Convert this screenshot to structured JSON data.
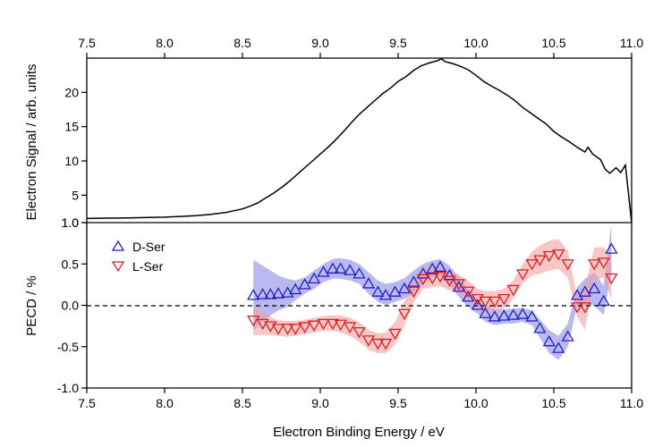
{
  "chart_data": [
    {
      "type": "line",
      "panel": "top",
      "title": "",
      "xlabel": "",
      "ylabel": "Electron Signal / arb. units",
      "xlim": [
        7.5,
        11.0
      ],
      "ylim": [
        1.0,
        25.0
      ],
      "xticks": [
        "7.5",
        "8.0",
        "8.5",
        "9.0",
        "9.5",
        "10.0",
        "10.5",
        "11.0"
      ],
      "yticks": [
        "1.0",
        "5",
        "10",
        "15",
        "20"
      ],
      "xtick_values": [
        7.5,
        8.0,
        8.5,
        9.0,
        9.5,
        10.0,
        10.5,
        11.0
      ],
      "ytick_values": [
        1.0,
        5,
        10,
        15,
        20
      ],
      "series": [
        {
          "color": "#000000",
          "x": [
            7.5,
            7.8,
            8.0,
            8.1,
            8.2,
            8.3,
            8.4,
            8.5,
            8.55,
            8.6,
            8.65,
            8.7,
            8.75,
            8.8,
            8.85,
            8.9,
            8.95,
            9.0,
            9.05,
            9.1,
            9.15,
            9.2,
            9.25,
            9.3,
            9.35,
            9.4,
            9.45,
            9.5,
            9.55,
            9.6,
            9.65,
            9.7,
            9.75,
            9.78,
            9.8,
            9.85,
            9.9,
            9.95,
            10.0,
            10.05,
            10.1,
            10.15,
            10.2,
            10.25,
            10.3,
            10.35,
            10.4,
            10.45,
            10.5,
            10.55,
            10.6,
            10.65,
            10.7,
            10.72,
            10.75,
            10.8,
            10.83,
            10.86,
            10.9,
            10.93,
            10.96,
            11.0
          ],
          "y": [
            1.6,
            1.7,
            1.8,
            1.9,
            2.0,
            2.2,
            2.5,
            3.0,
            3.4,
            3.9,
            4.6,
            5.3,
            6.1,
            7.0,
            8.0,
            9.0,
            10.0,
            11.0,
            12.0,
            13.1,
            14.3,
            15.6,
            16.8,
            17.8,
            18.8,
            19.8,
            20.6,
            21.6,
            22.3,
            23.2,
            23.9,
            24.3,
            24.6,
            24.9,
            24.5,
            24.2,
            23.8,
            23.3,
            22.5,
            21.6,
            20.9,
            20.3,
            19.6,
            18.8,
            17.8,
            17.0,
            16.2,
            15.4,
            14.3,
            13.5,
            12.8,
            12.0,
            11.3,
            12.0,
            11.0,
            10.2,
            8.8,
            8.2,
            9.0,
            8.3,
            9.4,
            1.0
          ]
        }
      ]
    },
    {
      "type": "scatter",
      "panel": "bottom",
      "title": "",
      "xlabel": "Electron Binding Energy / eV",
      "ylabel": "PECD / %",
      "xlim": [
        7.5,
        11.0
      ],
      "ylim": [
        -1.0,
        1.0
      ],
      "xticks": [
        "7.5",
        "8.0",
        "8.5",
        "9.0",
        "9.5",
        "10.0",
        "10.5",
        "11.0"
      ],
      "yticks": [
        "-1.0",
        "-0.5",
        "0.0",
        "0.5",
        "1.0"
      ],
      "xtick_values": [
        7.5,
        8.0,
        8.5,
        9.0,
        9.5,
        10.0,
        10.5,
        11.0
      ],
      "ytick_values": [
        -1.0,
        -0.5,
        0.0,
        0.5,
        1.0
      ],
      "zero_line": "dashed",
      "legend_position": "top-left",
      "series": [
        {
          "name": "D-Ser",
          "color": "#1f1fcc",
          "band_color": "#8a8ae6",
          "marker": "triangle-up",
          "x": [
            8.57,
            8.63,
            8.68,
            8.73,
            8.79,
            8.84,
            8.9,
            8.96,
            9.02,
            9.08,
            9.13,
            9.19,
            9.25,
            9.31,
            9.37,
            9.42,
            9.48,
            9.54,
            9.6,
            9.66,
            9.72,
            9.77,
            9.83,
            9.89,
            9.95,
            10.01,
            10.06,
            10.12,
            10.18,
            10.24,
            10.3,
            10.36,
            10.41,
            10.47,
            10.53,
            10.59,
            10.65,
            10.7,
            10.76,
            10.82,
            10.87
          ],
          "y": [
            0.12,
            0.13,
            0.13,
            0.14,
            0.15,
            0.19,
            0.25,
            0.32,
            0.4,
            0.44,
            0.44,
            0.42,
            0.38,
            0.26,
            0.16,
            0.12,
            0.16,
            0.2,
            0.28,
            0.38,
            0.44,
            0.46,
            0.36,
            0.22,
            0.1,
            0.0,
            -0.1,
            -0.14,
            -0.13,
            -0.12,
            -0.11,
            -0.14,
            -0.28,
            -0.44,
            -0.52,
            -0.38,
            0.12,
            0.16,
            0.2,
            0.05,
            0.68
          ],
          "band_upper": [
            0.55,
            0.48,
            0.42,
            0.36,
            0.32,
            0.3,
            0.34,
            0.42,
            0.5,
            0.56,
            0.57,
            0.55,
            0.5,
            0.4,
            0.3,
            0.26,
            0.28,
            0.33,
            0.42,
            0.5,
            0.54,
            0.56,
            0.48,
            0.34,
            0.2,
            0.08,
            0.0,
            -0.05,
            -0.05,
            -0.04,
            -0.03,
            -0.06,
            -0.17,
            -0.3,
            -0.37,
            -0.22,
            0.22,
            0.32,
            0.4,
            0.24,
            0.98
          ],
          "band_lower": [
            -0.3,
            -0.2,
            -0.12,
            -0.06,
            -0.02,
            0.06,
            0.14,
            0.2,
            0.28,
            0.32,
            0.32,
            0.3,
            0.26,
            0.14,
            0.04,
            0.0,
            0.04,
            0.08,
            0.15,
            0.26,
            0.34,
            0.36,
            0.25,
            0.1,
            -0.02,
            -0.1,
            -0.2,
            -0.24,
            -0.22,
            -0.22,
            -0.2,
            -0.24,
            -0.39,
            -0.58,
            -0.66,
            -0.5,
            0.0,
            0.0,
            0.0,
            -0.12,
            0.4
          ]
        },
        {
          "name": "L-Ser",
          "color": "#dd1f1f",
          "band_color": "#f2a0a0",
          "marker": "triangle-down",
          "x": [
            8.57,
            8.63,
            8.68,
            8.73,
            8.79,
            8.84,
            8.9,
            8.96,
            9.02,
            9.08,
            9.13,
            9.19,
            9.25,
            9.31,
            9.37,
            9.42,
            9.48,
            9.54,
            9.6,
            9.66,
            9.72,
            9.77,
            9.83,
            9.89,
            9.95,
            10.01,
            10.06,
            10.12,
            10.18,
            10.24,
            10.3,
            10.36,
            10.41,
            10.47,
            10.53,
            10.59,
            10.65,
            10.7,
            10.76,
            10.82,
            10.87
          ],
          "y": [
            -0.18,
            -0.22,
            -0.25,
            -0.28,
            -0.28,
            -0.28,
            -0.26,
            -0.24,
            -0.22,
            -0.22,
            -0.23,
            -0.26,
            -0.32,
            -0.42,
            -0.46,
            -0.46,
            -0.34,
            -0.1,
            0.17,
            0.32,
            0.33,
            0.35,
            0.3,
            0.26,
            0.17,
            0.08,
            0.05,
            0.05,
            0.08,
            0.19,
            0.38,
            0.5,
            0.55,
            0.6,
            0.62,
            0.5,
            -0.02,
            -0.02,
            0.5,
            0.52,
            0.33
          ],
          "band_upper": [
            0.0,
            -0.08,
            -0.14,
            -0.18,
            -0.19,
            -0.19,
            -0.17,
            -0.15,
            -0.13,
            -0.12,
            -0.12,
            -0.15,
            -0.2,
            -0.3,
            -0.34,
            -0.33,
            -0.2,
            0.05,
            0.3,
            0.45,
            0.46,
            0.47,
            0.42,
            0.37,
            0.3,
            0.2,
            0.17,
            0.17,
            0.2,
            0.3,
            0.5,
            0.65,
            0.72,
            0.78,
            0.8,
            0.66,
            0.1,
            0.2,
            0.7,
            0.7,
            0.6
          ],
          "band_lower": [
            -0.36,
            -0.36,
            -0.36,
            -0.37,
            -0.38,
            -0.37,
            -0.35,
            -0.33,
            -0.31,
            -0.31,
            -0.33,
            -0.37,
            -0.44,
            -0.54,
            -0.58,
            -0.58,
            -0.48,
            -0.25,
            0.04,
            0.2,
            0.22,
            0.23,
            0.18,
            0.15,
            0.06,
            -0.04,
            -0.07,
            -0.07,
            -0.04,
            0.08,
            0.26,
            0.36,
            0.38,
            0.42,
            0.44,
            0.34,
            -0.14,
            -0.3,
            0.3,
            0.34,
            0.06
          ]
        }
      ]
    }
  ]
}
